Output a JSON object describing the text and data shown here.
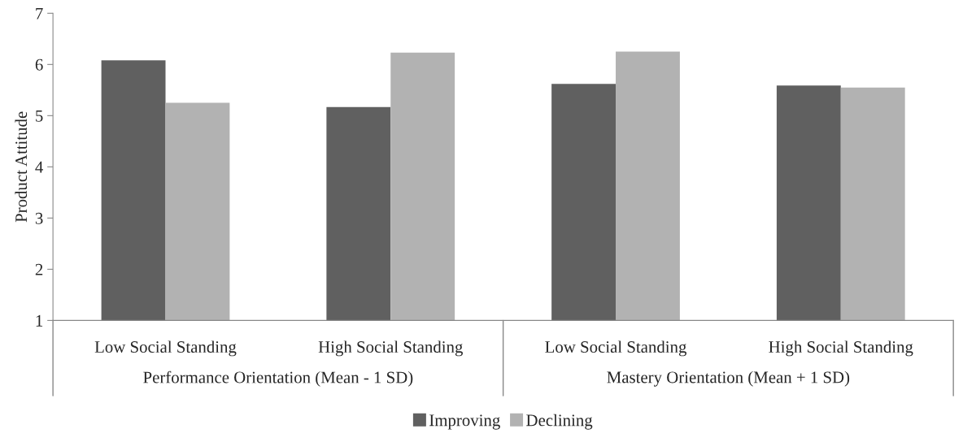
{
  "chart_data": {
    "type": "bar",
    "ylabel": "Product Attitude",
    "categories": [
      "Low Social Standing",
      "High Social Standing",
      "Low Social Standing",
      "High Social Standing"
    ],
    "series": [
      {
        "name": "Improving",
        "color": "#606060",
        "values": [
          6.08,
          5.17,
          5.62,
          5.59
        ]
      },
      {
        "name": "Declining",
        "color": "#b2b2b2",
        "values": [
          5.25,
          6.23,
          6.25,
          5.55
        ]
      }
    ],
    "ylim": [
      1,
      7
    ],
    "yticks": [
      1,
      2,
      3,
      4,
      5,
      6,
      7
    ],
    "grid": false,
    "legend": "bottom",
    "annotations": [
      "Performance Orientation (Mean - 1 SD)",
      "Mastery Orientation (Mean + 1 SD)"
    ]
  }
}
